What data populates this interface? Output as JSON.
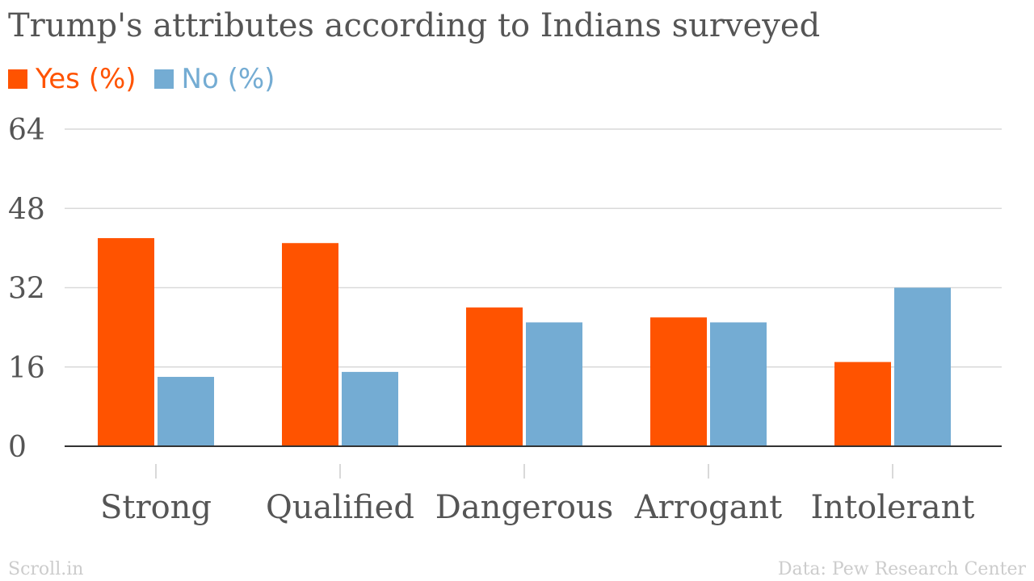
{
  "chart_data": {
    "type": "bar",
    "title": "Trump's attributes according to Indians surveyed",
    "categories": [
      "Strong",
      "Qualified",
      "Dangerous",
      "Arrogant",
      "Intolerant"
    ],
    "series": [
      {
        "name": "Yes (%)",
        "color": "#ff5300",
        "values": [
          42,
          41,
          28,
          26,
          17
        ]
      },
      {
        "name": "No (%)",
        "color": "#74acd3",
        "values": [
          14,
          15,
          25,
          25,
          32
        ]
      }
    ],
    "ylim": [
      0,
      64
    ],
    "yticks": [
      "0",
      "16",
      "32",
      "48",
      "64"
    ],
    "grid": true,
    "legend": "top-left"
  },
  "footer": {
    "source_left": "Scroll.in",
    "source_right": "Data: Pew Research Center"
  }
}
